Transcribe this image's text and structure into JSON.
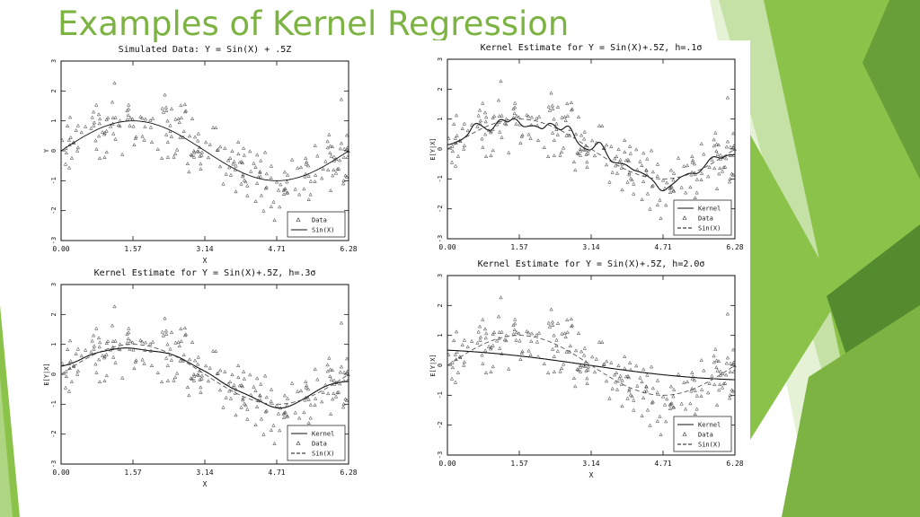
{
  "slide": {
    "title": "Examples of Kernel Regression"
  },
  "theme": {
    "accent": "#7cb342",
    "accent_dark": "#558b2f",
    "accent_light": "#aed581"
  },
  "chart_data": [
    {
      "type": "scatter",
      "title": "Simulated Data: Y = Sin(X) + .5Z",
      "xlabel": "X",
      "ylabel": "Y",
      "xlim": [
        0,
        6.28
      ],
      "ylim": [
        -3,
        3
      ],
      "x_ticks": [
        "0.00",
        "1.57",
        "3.14",
        "4.71",
        "6.28"
      ],
      "y_ticks": [
        "-3",
        "-2",
        "-1",
        "0",
        "1",
        "2",
        "3"
      ],
      "legend_position": "bottom-right",
      "series": [
        {
          "name": "Data",
          "kind": "data",
          "seed": 7
        },
        {
          "name": "Sin(X)",
          "kind": "sin",
          "style": "solid"
        }
      ]
    },
    {
      "type": "scatter",
      "title": "Kernel Estimate for Y = Sin(X)+.5Z, h=.1σ",
      "xlabel": "",
      "ylabel": "E[Y|X]",
      "xlim": [
        0,
        6.28
      ],
      "ylim": [
        -3,
        3
      ],
      "x_ticks": [
        "0.00",
        "1.57",
        "3.14",
        "4.71",
        "6.28"
      ],
      "y_ticks": [
        "-3",
        "-2",
        "-1",
        "0",
        "1",
        "2",
        "3"
      ],
      "legend_position": "bottom-right",
      "series": [
        {
          "name": "Kernel",
          "kind": "kernel",
          "h": 0.1,
          "style": "solid"
        },
        {
          "name": "Data",
          "kind": "data",
          "seed": 7
        },
        {
          "name": "Sin(X)",
          "kind": "sin",
          "style": "dashed"
        }
      ]
    },
    {
      "type": "scatter",
      "title": "Kernel Estimate for Y = Sin(X)+.5Z, h=.3σ",
      "xlabel": "X",
      "ylabel": "E[Y|X]",
      "xlim": [
        0,
        6.28
      ],
      "ylim": [
        -3,
        3
      ],
      "x_ticks": [
        "0.00",
        "1.57",
        "3.14",
        "4.71",
        "6.28"
      ],
      "y_ticks": [
        "-3",
        "-2",
        "-1",
        "0",
        "1",
        "2",
        "3"
      ],
      "legend_position": "bottom-right",
      "series": [
        {
          "name": "Kernel",
          "kind": "kernel",
          "h": 0.3,
          "style": "solid"
        },
        {
          "name": "Data",
          "kind": "data",
          "seed": 7
        },
        {
          "name": "Sin(X)",
          "kind": "sin",
          "style": "dashed"
        }
      ]
    },
    {
      "type": "scatter",
      "title": "Kernel Estimate for Y = Sin(X)+.5Z, h=2.0σ",
      "xlabel": "X",
      "ylabel": "E[Y|X]",
      "xlim": [
        0,
        6.28
      ],
      "ylim": [
        -3,
        3
      ],
      "x_ticks": [
        "0.00",
        "1.57",
        "3.14",
        "4.71",
        "6.28"
      ],
      "y_ticks": [
        "-3",
        "-2",
        "-1",
        "0",
        "1",
        "2",
        "3"
      ],
      "legend_position": "bottom-right",
      "series": [
        {
          "name": "Kernel",
          "kind": "kernel",
          "h": 2.0,
          "style": "solid"
        },
        {
          "name": "Data",
          "kind": "data",
          "seed": 7
        },
        {
          "name": "Sin(X)",
          "kind": "sin",
          "style": "dashed"
        }
      ]
    }
  ]
}
